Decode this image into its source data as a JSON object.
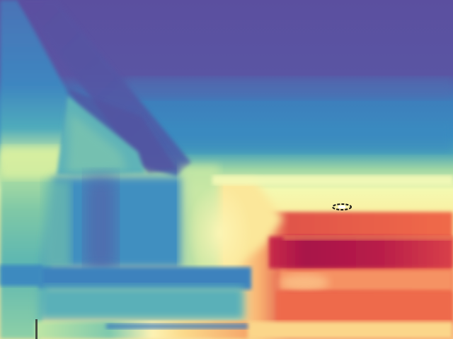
{
  "image": {
    "kind": "false-color depth map",
    "colormap": "spectral",
    "palette": {
      "far": "#5e4fa2",
      "mid_far": "#3288bd",
      "mid": "#66c2a5",
      "mid_near": "#e6f598",
      "near_light": "#fee08b",
      "near": "#f46d43",
      "nearest": "#9e0142"
    }
  }
}
